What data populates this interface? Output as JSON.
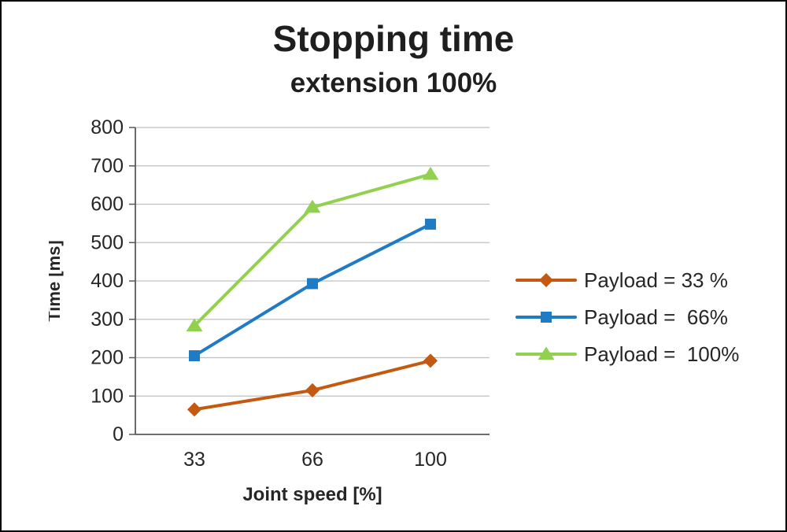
{
  "chart_data": {
    "type": "line",
    "title": "Stopping time",
    "subtitle": "extension 100%",
    "xlabel": "Joint speed [%]",
    "ylabel": "Time [ms]",
    "categories": [
      "33",
      "66",
      "100"
    ],
    "ylim": [
      0,
      800
    ],
    "ytick_step": 100,
    "grid": true,
    "legend_position": "right",
    "colors": {
      "gridline": "#BFBFBF",
      "axis": "#595959",
      "tick_text": "#262626"
    },
    "series": [
      {
        "name": "Payload = 33 %",
        "values": [
          65,
          115,
          192
        ],
        "color": "#C45911",
        "marker": "diamond"
      },
      {
        "name": "Payload =  66%",
        "values": [
          205,
          393,
          548
        ],
        "color": "#1F7BC4",
        "marker": "square"
      },
      {
        "name": "Payload =  100%",
        "values": [
          283,
          592,
          678
        ],
        "color": "#92D050",
        "marker": "triangle"
      }
    ]
  }
}
